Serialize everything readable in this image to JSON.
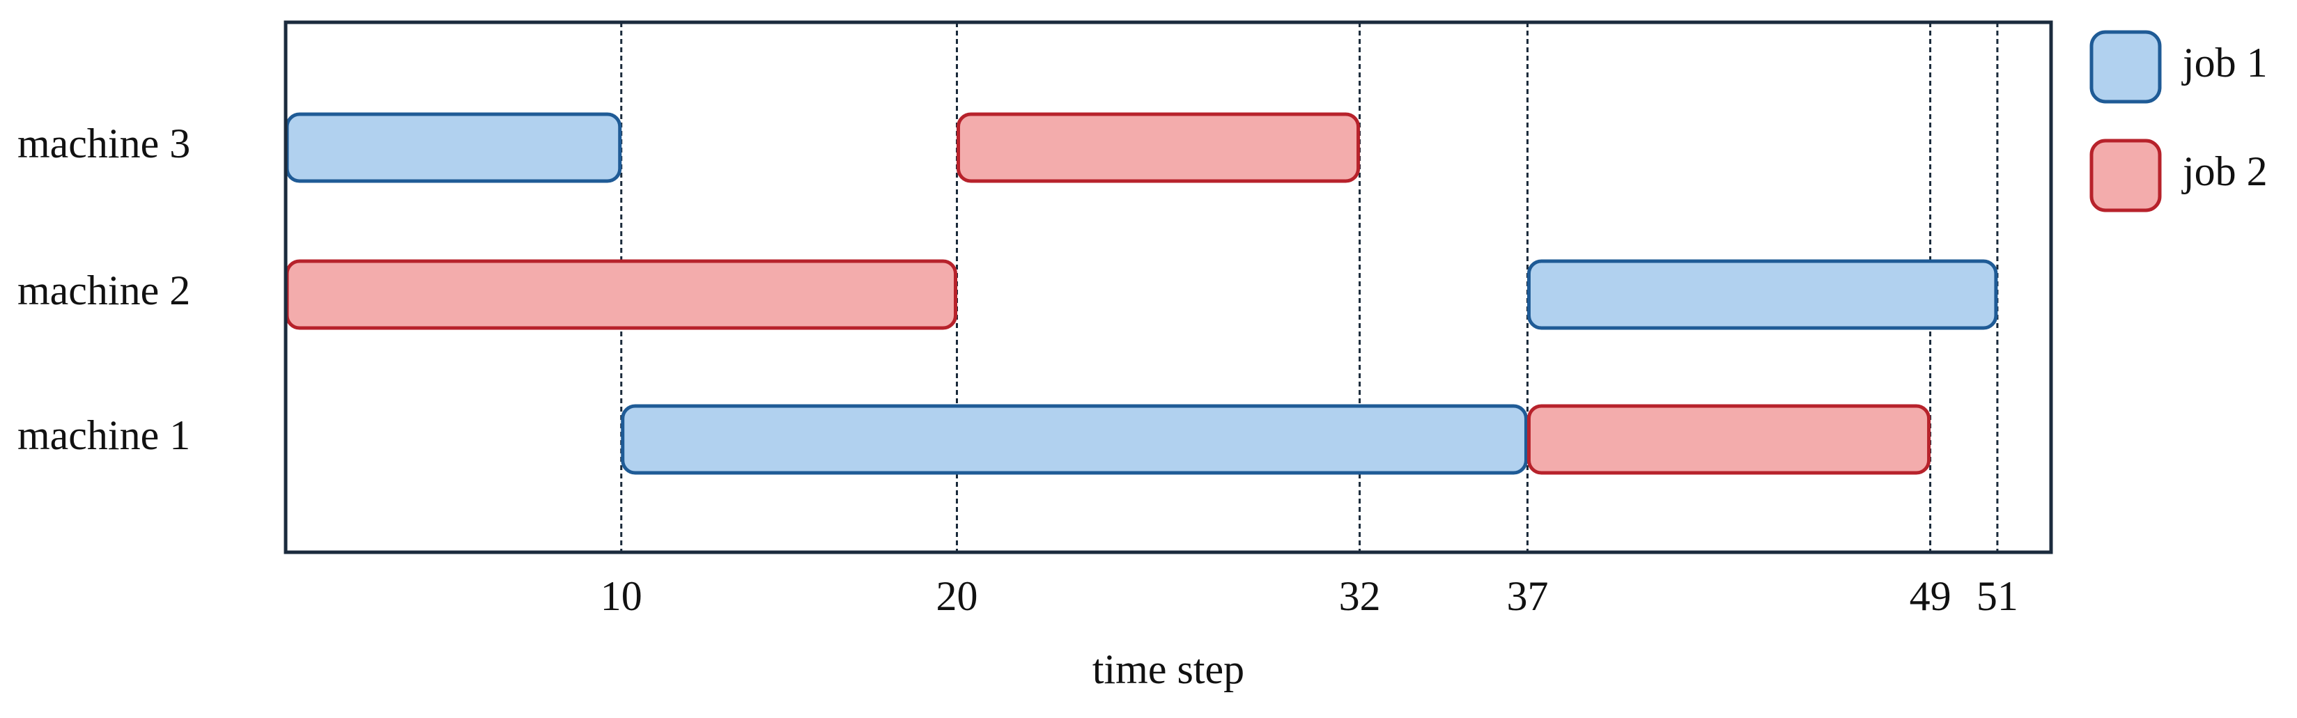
{
  "chart_data": {
    "type": "gantt",
    "categories": [
      "machine 3",
      "machine 2",
      "machine 1"
    ],
    "series": [
      {
        "name": "job 1",
        "color": "#b1d1ef",
        "edge": "#1f5b96",
        "values": [
          [
            0,
            10
          ],
          [
            37,
            51
          ],
          [
            10,
            37
          ]
        ]
      },
      {
        "name": "job 2",
        "color": "#f3acac",
        "edge": "#b7222b",
        "values": [
          [
            20,
            32
          ],
          [
            0,
            20
          ],
          [
            37,
            49
          ]
        ]
      }
    ],
    "xlabel": "time step",
    "xlim": [
      0,
      52.6
    ],
    "xticks": [
      10,
      20,
      32,
      37,
      49,
      51
    ],
    "grid": true,
    "legend": "outside right"
  }
}
